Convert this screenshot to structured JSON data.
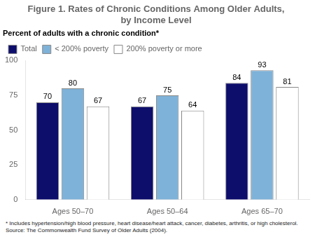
{
  "chart_data": {
    "type": "bar",
    "title": "Figure 1. Rates of Chronic Conditions Among Older Adults,\nby Income Level",
    "subtitle": "Percent of adults with a chronic condition*",
    "categories": [
      "Ages 50–70",
      "Ages 50–64",
      "Ages 65–70"
    ],
    "series": [
      {
        "name": "Total",
        "values": [
          70,
          67,
          84
        ],
        "color": "#0d0d6b"
      },
      {
        "name": "< 200% poverty",
        "values": [
          80,
          75,
          93
        ],
        "color": "#7fb2d8"
      },
      {
        "name": "200% poverty or more",
        "values": [
          67,
          64,
          81
        ],
        "color": "#ffffff"
      }
    ],
    "ylim": [
      0,
      100
    ],
    "yticks": [
      0,
      25,
      50,
      75,
      100
    ],
    "grid": false,
    "legend": "top",
    "data_labels": true,
    "annotations": [
      "* Includes hypertension/high blood pressure, heart disease/heart attack,  cancer, diabetes, arthritis, or high cholesterol.",
      "Source: The Commonwealth Fund Survey of Older Adults (2004)."
    ]
  }
}
